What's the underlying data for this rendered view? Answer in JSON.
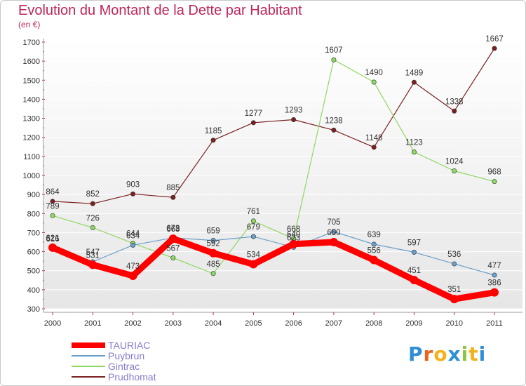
{
  "header": {
    "title": "Evolution du Montant de la Dette par Habitant",
    "subtitle": "(en €)"
  },
  "logo": {
    "text": "Proxiti",
    "letter_colors": [
      "#2e8fd6",
      "#e8641e",
      "#f2b21b",
      "#2e8fd6",
      "#8cc63f",
      "#f2b21b",
      "#2e8fd6"
    ]
  },
  "chart_data": {
    "type": "line",
    "title": "Evolution du Montant de la Dette par Habitant",
    "subtitle": "(en €)",
    "xlabel": "",
    "ylabel": "",
    "x": [
      "2000",
      "2001",
      "2002",
      "2003",
      "2004",
      "2005",
      "2006",
      "2007",
      "2008",
      "2009",
      "2010",
      "2011"
    ],
    "ylim": [
      300,
      1700
    ],
    "yticks": [
      300,
      400,
      500,
      600,
      700,
      800,
      900,
      1000,
      1100,
      1200,
      1300,
      1400,
      1500,
      1600,
      1700
    ],
    "grid": "horizontal",
    "legend_position": "bottom-left",
    "series": [
      {
        "name": "TAURIAC",
        "color": "#ff0000",
        "values": [
          621,
          531,
          473,
          668,
          592,
          534,
          640,
          650,
          556,
          451,
          351,
          386
        ]
      },
      {
        "name": "Puybrun",
        "color": "#6b9fcb",
        "values": [
          616,
          547,
          634,
          673,
          659,
          679,
          623,
          705,
          639,
          597,
          536,
          477
        ]
      },
      {
        "name": "Gintrac",
        "color": "#8fd863",
        "values": [
          789,
          726,
          644,
          567,
          485,
          761,
          668,
          1607,
          1490,
          1123,
          1024,
          968
        ]
      },
      {
        "name": "Prudhomat",
        "color": "#7a2020",
        "values": [
          864,
          852,
          903,
          885,
          1185,
          1277,
          1293,
          1238,
          1148,
          1489,
          1338,
          1667
        ]
      }
    ]
  }
}
